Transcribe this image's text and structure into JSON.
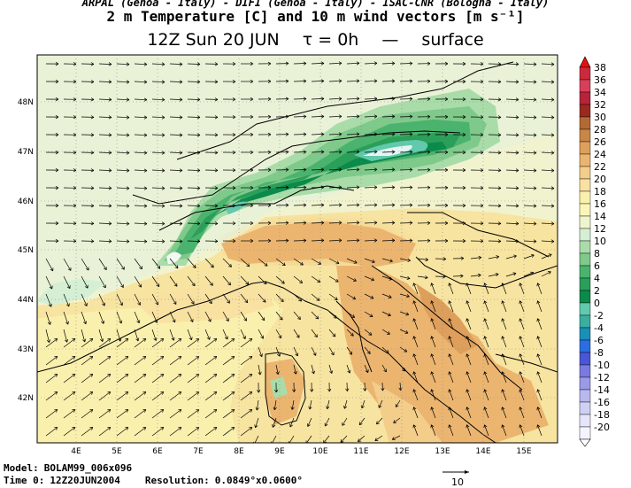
{
  "header": {
    "institutions": "ARPAL (Genoa - Italy)  -  DIFI (Genoa - Italy)  -  ISAC-CNR (Bologna - Italy)",
    "title": "2 m Temperature [C] and 10 m wind vectors [m s⁻¹]",
    "time": "12Z Sun 20 JUN",
    "tau": "τ = 0h",
    "dash": "—",
    "level": "surface"
  },
  "axes": {
    "lat_labels": [
      "48N",
      "47N",
      "46N",
      "45N",
      "44N",
      "43N",
      "42N"
    ],
    "lon_labels": [
      "4E",
      "5E",
      "6E",
      "7E",
      "8E",
      "9E",
      "10E",
      "11E",
      "12E",
      "13E",
      "14E",
      "15E"
    ]
  },
  "colorbar": {
    "labels": [
      "38",
      "36",
      "34",
      "32",
      "30",
      "28",
      "26",
      "24",
      "22",
      "20",
      "18",
      "16",
      "14",
      "12",
      "10",
      "8",
      "6",
      "4",
      "2",
      "0",
      "-2",
      "-4",
      "-6",
      "-8",
      "-10",
      "-12",
      "-14",
      "-16",
      "-18",
      "-20"
    ],
    "colors": [
      "#cc2a3c",
      "#d6405a",
      "#b7243a",
      "#9a2a1e",
      "#b26a35",
      "#c98745",
      "#dd9f5b",
      "#ebb570",
      "#f3cd8a",
      "#f8e1a1",
      "#faf0ad",
      "#fbf6b8",
      "#eef4cc",
      "#d4efd4",
      "#a9dca9",
      "#7fc98b",
      "#4ab36d",
      "#2a9f5a",
      "#0b8a4a",
      "#62c9ad",
      "#3aaea0",
      "#1a8fb8",
      "#2a6fe0",
      "#4a55d8",
      "#7a7ae0",
      "#9a9ae6",
      "#b8b8ee",
      "#d0d0f4",
      "#e6e6fa",
      "#f4f4fc"
    ],
    "top_arrow": "#e51010"
  },
  "footer": {
    "model_label": "Model:",
    "model": "BOLAM99_006x096",
    "time0_label": "Time 0:",
    "time0": "12Z20JUN2004",
    "res_label": "Resolution:",
    "resolution": "0.0849°x0.0600°",
    "ref_vector": "10"
  }
}
